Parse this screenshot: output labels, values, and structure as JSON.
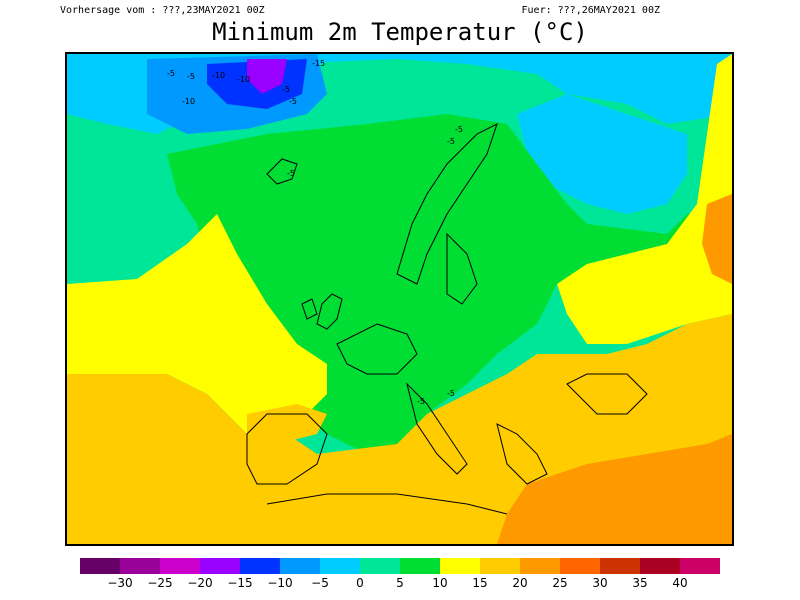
{
  "header": {
    "left": "Vorhersage vom : ???,23MAY2021 00Z",
    "right": "Fuer: ???,26MAY2021 00Z",
    "title": "Minimum 2m Temperatur (°C)"
  },
  "legend": {
    "colors": [
      "#660066",
      "#990099",
      "#cc00cc",
      "#9900ff",
      "#0033ff",
      "#0099ff",
      "#00ccff",
      "#00e699",
      "#00dd33",
      "#ffff00",
      "#ffcc00",
      "#ff9900",
      "#ff6600",
      "#cc3300",
      "#aa0022",
      "#cc0066"
    ],
    "ticks": [
      "-30",
      "-25",
      "-20",
      "-15",
      "-10",
      "-5",
      "0",
      "5",
      "10",
      "15",
      "20",
      "25",
      "30",
      "35",
      "40"
    ]
  },
  "map": {
    "description_colors": {
      "cold_ice": "#9900ff",
      "very_cold": "#0033ff",
      "cold": "#00ccff",
      "cool": "#00e699",
      "mild": "#00dd33",
      "warm": "#ffff00",
      "hot": "#ffcc00",
      "very_hot": "#ff9900"
    },
    "contour_labels": [
      "-5",
      "-5",
      "-10",
      "-10",
      "-15",
      "-10",
      "-5",
      "-5",
      "-5",
      "-5",
      "-5",
      "-5",
      "-5"
    ]
  }
}
